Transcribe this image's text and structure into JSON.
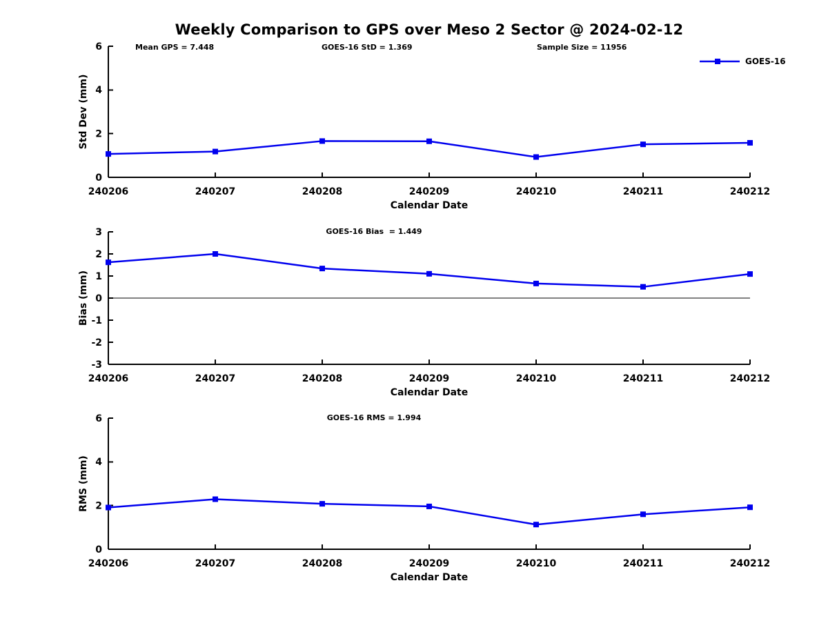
{
  "title": "Weekly Comparison to GPS over Meso 2 Sector @ 2024-02-12",
  "legend": {
    "label": "GOES-16",
    "color": "#0000EE"
  },
  "chart_data": [
    {
      "type": "line",
      "id": "stddev",
      "categories": [
        "240206",
        "240207",
        "240208",
        "240209",
        "240210",
        "240211",
        "240212"
      ],
      "series": [
        {
          "name": "GOES-16",
          "color": "#0000EE",
          "marker": "square",
          "values": [
            1.07,
            1.18,
            1.66,
            1.65,
            0.93,
            1.51,
            1.58
          ]
        }
      ],
      "xlabel": "Calendar Date",
      "ylabel": "Std Dev (mm)",
      "ylim": [
        0,
        6
      ],
      "yticks": [
        0,
        2,
        4,
        6
      ],
      "grid": false,
      "legend_position": "top-right",
      "annotations": [
        "Mean GPS = 7.448",
        "GOES-16 StD = 1.369",
        "Sample Size = 11956"
      ]
    },
    {
      "type": "line",
      "id": "bias",
      "categories": [
        "240206",
        "240207",
        "240208",
        "240209",
        "240210",
        "240211",
        "240212"
      ],
      "series": [
        {
          "name": "GOES-16",
          "color": "#0000EE",
          "marker": "square",
          "values": [
            1.62,
            2.0,
            1.34,
            1.1,
            0.66,
            0.51,
            1.09
          ]
        }
      ],
      "xlabel": "Calendar Date",
      "ylabel": "Bias (mm)",
      "ylim": [
        -3,
        3
      ],
      "yticks": [
        -3,
        -2,
        -1,
        0,
        1,
        2,
        3
      ],
      "zero_line": true,
      "grid": false,
      "annotation": "GOES-16 Bias  = 1.449"
    },
    {
      "type": "line",
      "id": "rms",
      "categories": [
        "240206",
        "240207",
        "240208",
        "240209",
        "240210",
        "240211",
        "240212"
      ],
      "series": [
        {
          "name": "GOES-16",
          "color": "#0000EE",
          "marker": "square",
          "values": [
            1.91,
            2.29,
            2.08,
            1.96,
            1.13,
            1.6,
            1.92
          ]
        }
      ],
      "xlabel": "Calendar Date",
      "ylabel": "RMS (mm)",
      "ylim": [
        0,
        6
      ],
      "yticks": [
        0,
        2,
        4,
        6
      ],
      "grid": false,
      "annotation": "GOES-16 RMS = 1.994"
    }
  ]
}
